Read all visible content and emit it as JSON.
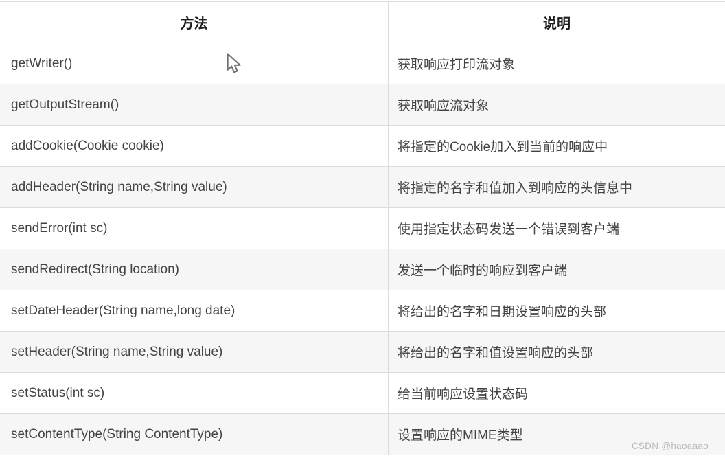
{
  "table": {
    "headers": {
      "method": "方法",
      "description": "说明"
    },
    "rows": [
      {
        "method": "getWriter()",
        "description": "获取响应打印流对象"
      },
      {
        "method": "getOutputStream()",
        "description": "获取响应流对象"
      },
      {
        "method": "addCookie(Cookie cookie)",
        "description": "将指定的Cookie加入到当前的响应中"
      },
      {
        "method": "addHeader(String name,String value)",
        "description": "将指定的名字和值加入到响应的头信息中"
      },
      {
        "method": "sendError(int sc)",
        "description": "使用指定状态码发送一个错误到客户端"
      },
      {
        "method": "sendRedirect(String location)",
        "description": "发送一个临时的响应到客户端"
      },
      {
        "method": "setDateHeader(String name,long date)",
        "description": "将给出的名字和日期设置响应的头部"
      },
      {
        "method": "setHeader(String name,String value)",
        "description": "将给出的名字和值设置响应的头部"
      },
      {
        "method": "setStatus(int sc)",
        "description": "给当前响应设置状态码"
      },
      {
        "method": "setContentType(String ContentType)",
        "description": "设置响应的MIME类型"
      }
    ]
  },
  "watermark": "CSDN @haoaaao",
  "cursor": {
    "icon": "arrow-cursor"
  },
  "colors": {
    "grid_border": "#dcdcdc",
    "alt_row_bg": "#f6f6f6",
    "cell_text": "#434343",
    "header_text": "#1d1d1d",
    "watermark_text": "#b9b9b9"
  }
}
